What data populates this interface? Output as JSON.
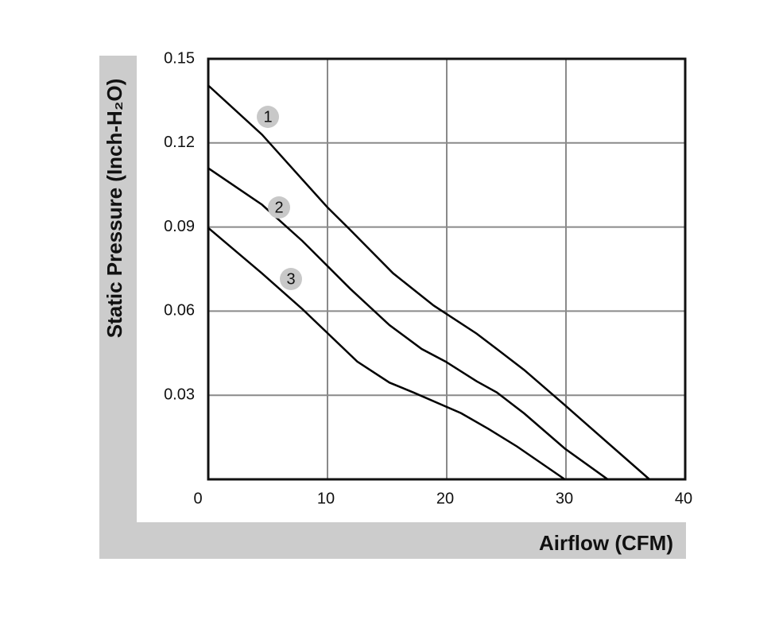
{
  "chart_data": {
    "type": "line",
    "y_label": "Static Pressure (Inch-H₂O)",
    "x_label": "Airflow (CFM)",
    "xlim": [
      0,
      40
    ],
    "xticks": [
      0,
      10,
      20,
      30,
      40
    ],
    "ylim": [
      0,
      0.15
    ],
    "yticks": [
      0.03,
      0.06,
      0.09,
      0.12,
      0.15
    ],
    "grid": true,
    "series": [
      {
        "name": "1",
        "color": "#000000",
        "x": [
          0,
          4.5,
          10,
          11.9,
          15.5,
          18.9,
          22.5,
          24.2,
          26.5,
          29.9,
          31.9,
          37
        ],
        "values": [
          0.1405,
          0.123,
          0.097,
          0.089,
          0.0735,
          0.062,
          0.052,
          0.0465,
          0.039,
          0.0265,
          0.019,
          0
        ]
      },
      {
        "name": "2",
        "color": "#000000",
        "x": [
          0,
          4.5,
          7.9,
          11.9,
          15.2,
          17.9,
          19.9,
          22.5,
          24.2,
          26.5,
          29.9,
          33.5
        ],
        "values": [
          0.111,
          0.098,
          0.085,
          0.068,
          0.055,
          0.0465,
          0.042,
          0.035,
          0.031,
          0.0235,
          0.011,
          0
        ]
      },
      {
        "name": "3",
        "color": "#000000",
        "x": [
          0,
          4.5,
          7.9,
          12.5,
          15.2,
          17.2,
          21.2,
          23.5,
          25.9,
          29.9
        ],
        "values": [
          0.0897,
          0.0735,
          0.0607,
          0.042,
          0.0345,
          0.031,
          0.0236,
          0.018,
          0.0117,
          0
        ]
      }
    ]
  }
}
